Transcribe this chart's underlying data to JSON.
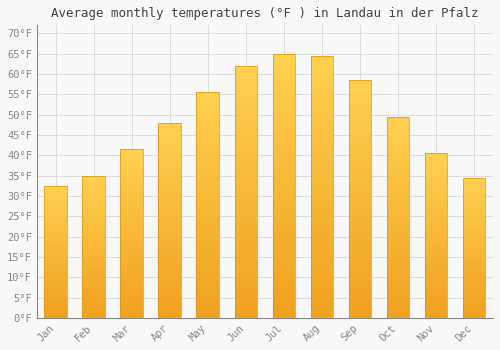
{
  "title": "Average monthly temperatures (°F ) in Landau in der Pfalz",
  "months": [
    "Jan",
    "Feb",
    "Mar",
    "Apr",
    "May",
    "Jun",
    "Jul",
    "Aug",
    "Sep",
    "Oct",
    "Nov",
    "Dec"
  ],
  "values": [
    32.5,
    35.0,
    41.5,
    48.0,
    55.5,
    62.0,
    65.0,
    64.5,
    58.5,
    49.5,
    40.5,
    34.5
  ],
  "bar_color_bottom": "#F0A020",
  "bar_color_top": "#FFD050",
  "background_color": "#F8F8F8",
  "grid_color": "#DDDDDD",
  "ylim": [
    0,
    72
  ],
  "yticks": [
    0,
    5,
    10,
    15,
    20,
    25,
    30,
    35,
    40,
    45,
    50,
    55,
    60,
    65,
    70
  ],
  "ytick_labels": [
    "0°F",
    "5°F",
    "10°F",
    "15°F",
    "20°F",
    "25°F",
    "30°F",
    "35°F",
    "40°F",
    "45°F",
    "50°F",
    "55°F",
    "60°F",
    "65°F",
    "70°F"
  ],
  "title_fontsize": 9,
  "tick_fontsize": 7.5,
  "font_family": "monospace",
  "bar_width": 0.6,
  "bar_edge_color": "#E09010",
  "bar_edge_width": 0.5
}
